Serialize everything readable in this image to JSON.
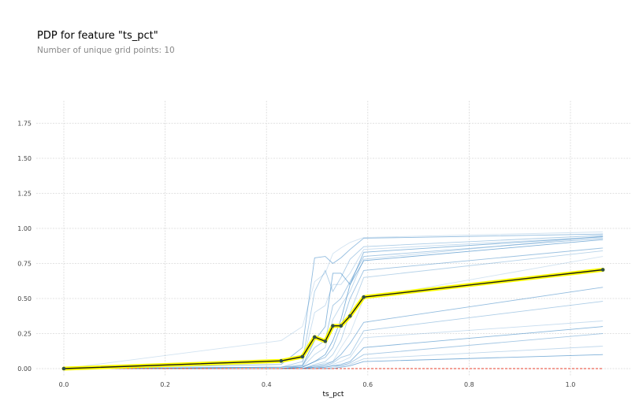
{
  "chart_data": {
    "type": "line",
    "title": "PDP for feature \"ts_pct\"",
    "subtitle": "Number of unique grid points: 10",
    "xlabel": "ts_pct",
    "ylabel": "",
    "xlim": [
      -0.05,
      1.13
    ],
    "ylim": [
      0,
      1.9
    ],
    "x_ticks": [
      0.0,
      0.2,
      0.4,
      0.6,
      0.8,
      1.0
    ],
    "x_tick_labels": [
      "0.0",
      "0.2",
      "0.4",
      "0.6",
      "0.8",
      "1.0"
    ],
    "y_ticks": [
      0.0,
      0.25,
      0.5,
      0.75,
      1.0,
      1.25,
      1.5,
      1.75
    ],
    "y_tick_labels": [
      "0.00",
      "0.25",
      "0.50",
      "0.75",
      "1.00",
      "1.25",
      "1.50",
      "1.75"
    ],
    "grid": true,
    "x": [
      0.0,
      0.429,
      0.471,
      0.495,
      0.516,
      0.531,
      0.547,
      0.565,
      0.592,
      1.064
    ],
    "pdp": {
      "values": [
        0.0,
        0.055,
        0.085,
        0.225,
        0.195,
        0.305,
        0.305,
        0.375,
        0.51,
        0.705
      ],
      "line_color": "#1a1a1a",
      "highlight_color": "#ffff00",
      "marker_color": "#2f4f4f"
    },
    "zero_line": {
      "value": 0.0,
      "color": "#e8402e"
    },
    "ice_color": "#4a90c9",
    "ice_lines": [
      [
        0.0,
        0.2,
        0.3,
        0.62,
        0.68,
        0.82,
        0.86,
        0.9,
        0.935,
        0.975
      ],
      [
        0.0,
        0.03,
        0.15,
        0.79,
        0.8,
        0.75,
        0.79,
        0.85,
        0.93,
        0.96
      ],
      [
        0.0,
        0.01,
        0.05,
        0.55,
        0.7,
        0.55,
        0.65,
        0.78,
        0.87,
        0.95
      ],
      [
        0.0,
        0.01,
        0.03,
        0.4,
        0.45,
        0.6,
        0.6,
        0.68,
        0.85,
        0.94
      ],
      [
        0.0,
        0.01,
        0.02,
        0.2,
        0.3,
        0.68,
        0.68,
        0.6,
        0.83,
        0.94
      ],
      [
        0.0,
        0.0,
        0.02,
        0.15,
        0.2,
        0.45,
        0.5,
        0.62,
        0.8,
        0.93
      ],
      [
        0.0,
        0.0,
        0.01,
        0.1,
        0.15,
        0.35,
        0.45,
        0.55,
        0.78,
        0.945
      ],
      [
        0.0,
        0.0,
        0.01,
        0.05,
        0.1,
        0.2,
        0.35,
        0.6,
        0.77,
        0.92
      ],
      [
        0.0,
        0.0,
        0.01,
        0.05,
        0.08,
        0.15,
        0.3,
        0.5,
        0.7,
        0.86
      ],
      [
        0.0,
        0.0,
        0.0,
        0.03,
        0.05,
        0.1,
        0.2,
        0.4,
        0.65,
        0.84
      ],
      [
        0.0,
        0.0,
        0.0,
        0.02,
        0.04,
        0.05,
        0.15,
        0.25,
        0.5,
        0.8
      ],
      [
        0.0,
        0.0,
        0.0,
        0.02,
        0.03,
        0.05,
        0.1,
        0.18,
        0.33,
        0.58
      ],
      [
        0.0,
        0.0,
        0.0,
        0.01,
        0.02,
        0.04,
        0.08,
        0.1,
        0.27,
        0.48
      ],
      [
        0.0,
        0.0,
        0.0,
        0.01,
        0.02,
        0.03,
        0.05,
        0.08,
        0.22,
        0.34
      ],
      [
        0.0,
        0.0,
        0.0,
        0.01,
        0.01,
        0.02,
        0.03,
        0.05,
        0.15,
        0.3
      ],
      [
        0.0,
        0.0,
        0.0,
        0.0,
        0.01,
        0.02,
        0.02,
        0.04,
        0.1,
        0.25
      ],
      [
        0.0,
        0.0,
        0.0,
        0.0,
        0.0,
        0.01,
        0.02,
        0.03,
        0.07,
        0.16
      ],
      [
        0.0,
        0.0,
        0.0,
        0.0,
        0.0,
        0.0,
        0.01,
        0.02,
        0.05,
        0.1
      ]
    ]
  }
}
